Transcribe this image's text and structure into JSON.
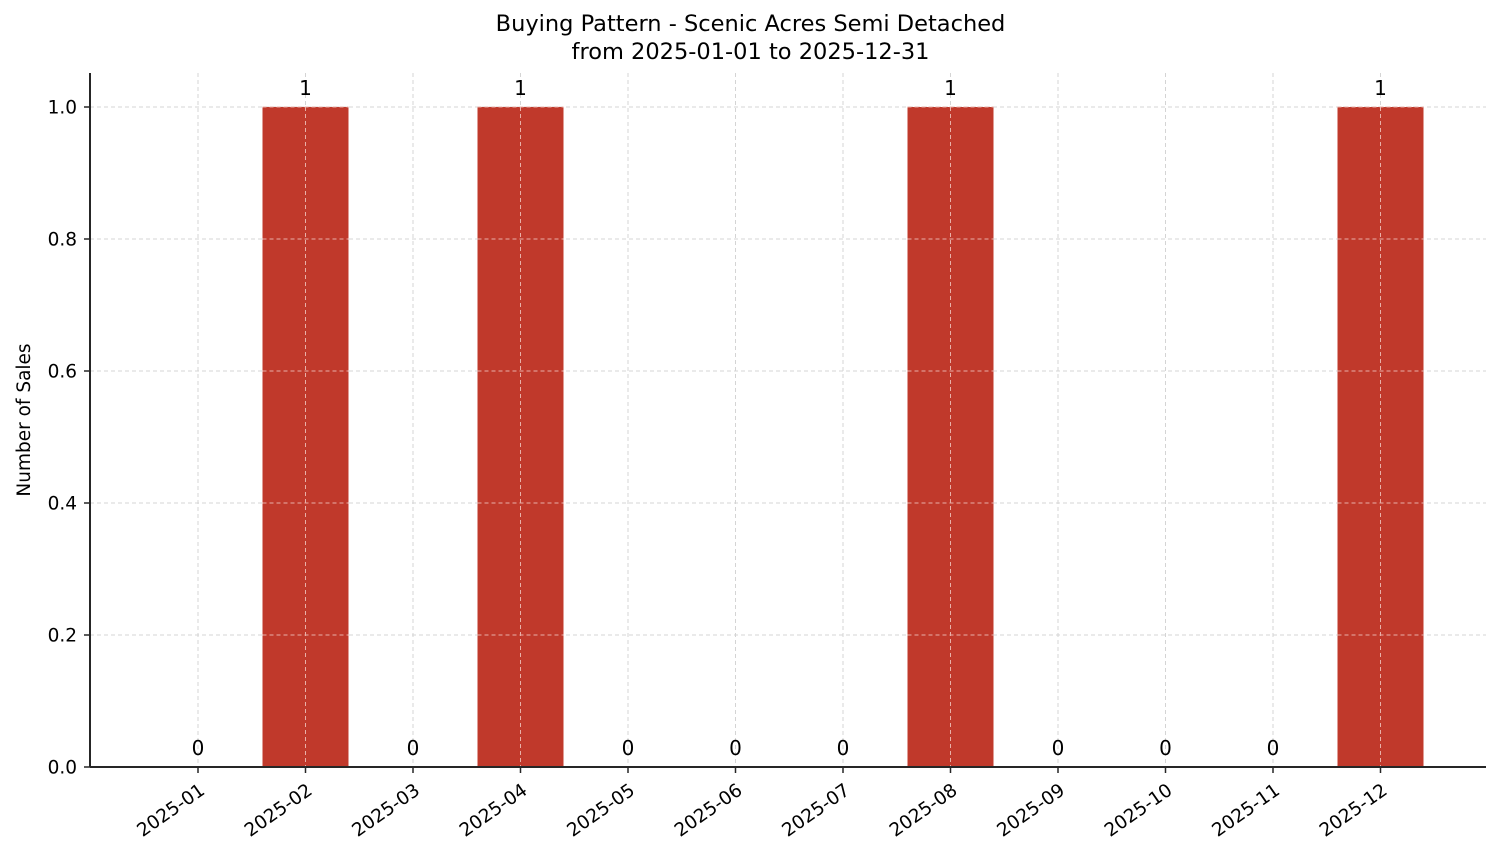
{
  "chart_data": {
    "type": "bar",
    "title": "Buying Pattern - Scenic Acres Semi Detached",
    "subtitle": "from 2025-01-01 to 2025-12-31",
    "xlabel": "",
    "ylabel": "Number of Sales",
    "categories": [
      "2025-01",
      "2025-02",
      "2025-03",
      "2025-04",
      "2025-05",
      "2025-06",
      "2025-07",
      "2025-08",
      "2025-09",
      "2025-10",
      "2025-11",
      "2025-12"
    ],
    "values": [
      0,
      1,
      0,
      1,
      0,
      0,
      0,
      1,
      0,
      0,
      0,
      1
    ],
    "bar_labels": [
      "0",
      "1",
      "0",
      "1",
      "0",
      "0",
      "0",
      "1",
      "0",
      "0",
      "0",
      "1"
    ],
    "ylim": [
      0,
      1.05
    ],
    "yticks": [
      "0.0",
      "0.2",
      "0.4",
      "0.6",
      "0.8",
      "1.0"
    ],
    "grid": true,
    "legend": null,
    "bar_color": "#C0392B"
  }
}
